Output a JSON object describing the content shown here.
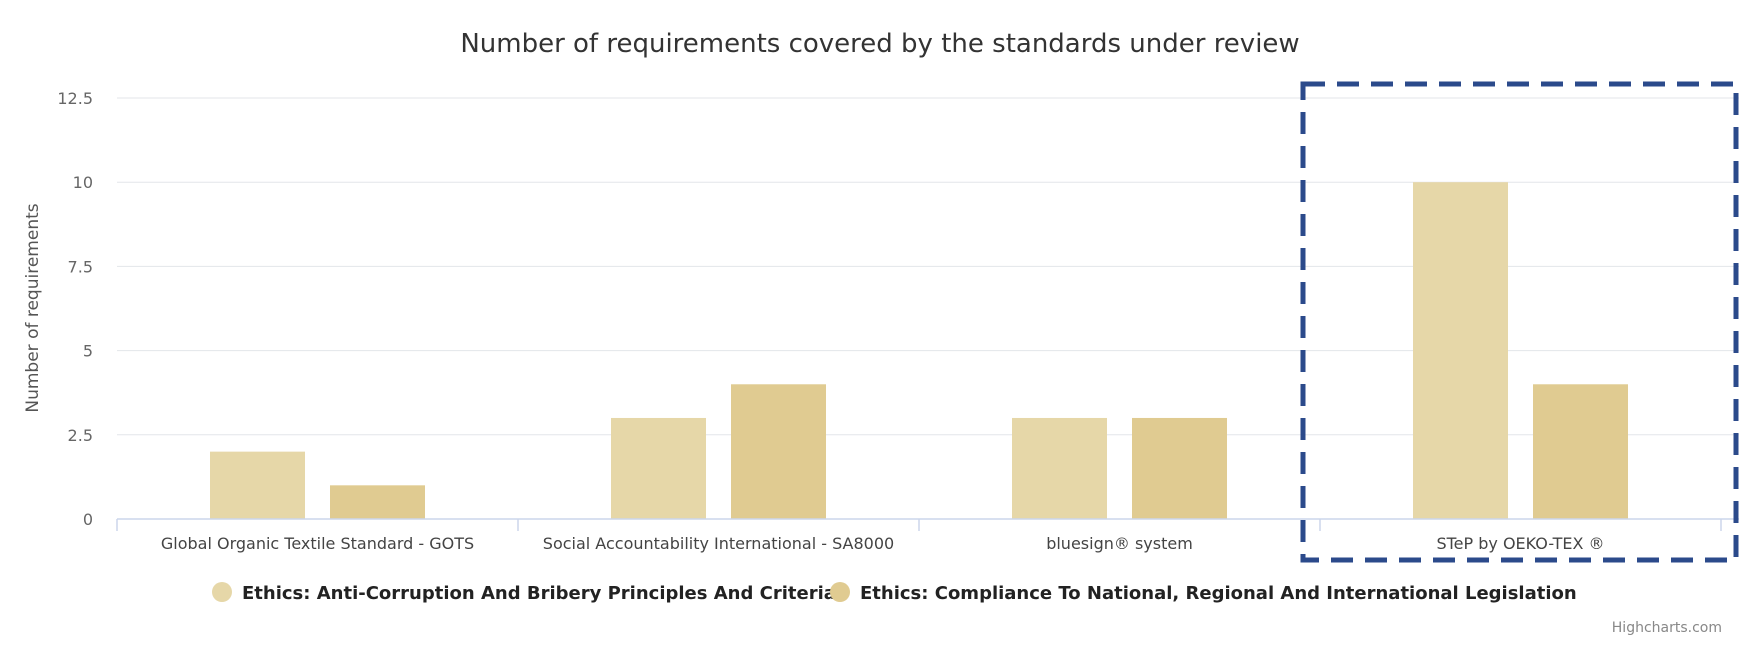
{
  "chart_data": {
    "type": "bar",
    "title": "Number of requirements covered by the standards under review",
    "ylabel": "Number of requirements",
    "xlabel": "",
    "ylim": [
      0,
      12.5
    ],
    "yticks": [
      0,
      2.5,
      5,
      7.5,
      10,
      12.5
    ],
    "ytick_labels": [
      "0",
      "2.5",
      "5",
      "7.5",
      "10",
      "12.5"
    ],
    "grid": true,
    "categories": [
      "Global Organic Textile Standard - GOTS",
      "Social Accountability International - SA8000",
      "bluesign® system",
      "STeP by OEKO-TEX ®"
    ],
    "series": [
      {
        "name": "Ethics: Anti-Corruption And Bribery Principles And Criteria",
        "color": "#e6d7a8",
        "values": [
          2,
          3,
          3,
          10
        ]
      },
      {
        "name": "Ethics: Compliance To National, Regional And International Legislation",
        "color": "#e0cb91",
        "values": [
          1,
          4,
          3,
          4
        ]
      }
    ],
    "legend_placement": "bottom-center",
    "highlight": {
      "category_index": 3,
      "style": "dashed",
      "color": "#2b4a8b"
    },
    "credits": "Highcharts.com"
  }
}
